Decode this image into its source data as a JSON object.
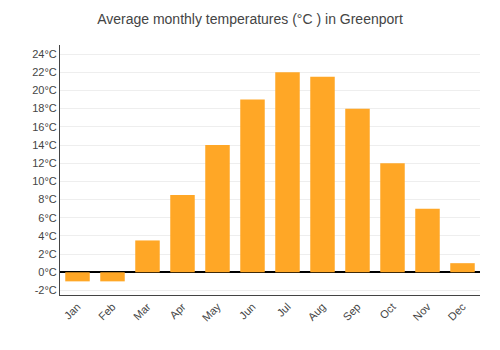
{
  "chart_data": {
    "type": "bar",
    "title": "Average monthly temperatures (°C ) in Greenport",
    "categories": [
      "Jan",
      "Feb",
      "Mar",
      "Apr",
      "May",
      "Jun",
      "Jul",
      "Aug",
      "Sep",
      "Oct",
      "Nov",
      "Dec"
    ],
    "values": [
      -1.0,
      -1.0,
      3.5,
      8.5,
      14.0,
      19.0,
      22.0,
      21.5,
      18.0,
      12.0,
      7.0,
      1.0
    ],
    "color": "#FFA726",
    "ylim": [
      -2.5,
      25.0
    ],
    "yticks": [
      {
        "value": -2,
        "label": "-2°C"
      },
      {
        "value": 0,
        "label": "0°C"
      },
      {
        "value": 2,
        "label": "2°C"
      },
      {
        "value": 4,
        "label": "4°C"
      },
      {
        "value": 6,
        "label": "6°C"
      },
      {
        "value": 8,
        "label": "8°C"
      },
      {
        "value": 10,
        "label": "10°C"
      },
      {
        "value": 12,
        "label": "12°C"
      },
      {
        "value": 14,
        "label": "14°C"
      },
      {
        "value": 16,
        "label": "16°C"
      },
      {
        "value": 18,
        "label": "18°C"
      },
      {
        "value": 20,
        "label": "20°C"
      },
      {
        "value": 22,
        "label": "22°C"
      },
      {
        "value": 24,
        "label": "24°C"
      }
    ],
    "grid": true
  }
}
